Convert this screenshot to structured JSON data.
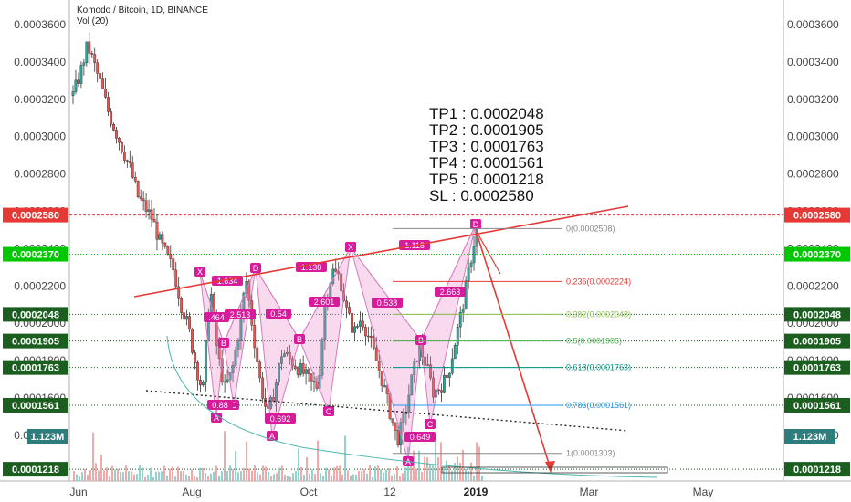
{
  "header": {
    "symbol": "Komodo / Bitcoin, 1D, BINANCE",
    "volume": "Vol (20)"
  },
  "targets": [
    "TP1 : 0.0002048",
    "TP2 : 0.0001905",
    "TP3 : 0.0001763",
    "TP4 : 0.0001561",
    "TP5 : 0.0001218",
    "SL : 0.0002580"
  ],
  "chart_data": {
    "type": "candlestick",
    "title": "Komodo / Bitcoin, 1D, BINANCE",
    "xlabel": "",
    "ylabel": "",
    "x_ticks": [
      "Jun",
      "Aug",
      "Oct",
      "12",
      "2019",
      "Mar",
      "May"
    ],
    "y_ticks": [
      "0.0003600",
      "0.0003400",
      "0.0003200",
      "0.0003000",
      "0.0002800",
      "0.0002600",
      "0.0002400",
      "0.0002200",
      "0.0002000",
      "0.0001800",
      "0.0001600",
      "0.0001400"
    ],
    "ylim": [
      0.00012,
      0.000365
    ],
    "grid": false,
    "price_tags": [
      {
        "label": "0.0002580",
        "value": 0.000258,
        "color": "#e53935"
      },
      {
        "label": "0.0002370",
        "value": 0.000237,
        "color": "#00c800"
      },
      {
        "label": "0.0002048",
        "value": 0.0002048,
        "color": "#1b5e20"
      },
      {
        "label": "0.0001905",
        "value": 0.0001905,
        "color": "#1b5e20"
      },
      {
        "label": "0.0001763",
        "value": 0.0001763,
        "color": "#1b5e20"
      },
      {
        "label": "0.0001561",
        "value": 0.0001561,
        "color": "#1b5e20"
      },
      {
        "label": "0.0001218",
        "value": 0.0001218,
        "color": "#1b5e20"
      }
    ],
    "volume_tag": {
      "label": "1.123M",
      "color": "#2e7d7d"
    },
    "fib_levels": [
      {
        "label": "0(0.0002508)",
        "value": 0.0002508,
        "color": "#888888"
      },
      {
        "label": "0.236(0.0002224)",
        "value": 0.0002224,
        "color": "#e53935"
      },
      {
        "label": "0.382(0.0002048)",
        "value": 0.0002048,
        "color": "#8bc34a"
      },
      {
        "label": "0.5(0.0001905)",
        "value": 0.0001905,
        "color": "#4caf50"
      },
      {
        "label": "0.618(0.0001763)",
        "value": 0.0001763,
        "color": "#009688"
      },
      {
        "label": "0.786(0.0001561)",
        "value": 0.0001561,
        "color": "#2196f3"
      },
      {
        "label": "1(0.0001303)",
        "value": 0.0001303,
        "color": "#888888"
      }
    ],
    "pattern_labels": [
      "X",
      "A",
      "B",
      "C",
      "D",
      "X",
      "A",
      "B",
      "C",
      "D",
      "X",
      "A",
      "B",
      "C",
      "D"
    ],
    "ratio_labels": [
      "1.634",
      ".464",
      "2.513",
      "0.54",
      "1.138",
      "2.601",
      "0.538",
      "0.692",
      "1.118",
      "2.663",
      "0.649",
      "0.88"
    ],
    "series": [
      {
        "name": "",
        "points": [
          [
            "May 28",
            0.000322
          ],
          [
            "Jun 1",
            0.000334
          ],
          [
            "Jun 5",
            0.000349
          ],
          [
            "Jun 8",
            0.000338
          ],
          [
            "Jun 12",
            0.000326
          ],
          [
            "Jun 16",
            0.000312
          ],
          [
            "Jun 20",
            0.000302
          ],
          [
            "Jun 24",
            0.000292
          ],
          [
            "Jun 28",
            0.000282
          ],
          [
            "Jul 2",
            0.000268
          ],
          [
            "Jul 6",
            0.000262
          ],
          [
            "Jul 10",
            0.000256
          ],
          [
            "Jul 14",
            0.000244
          ],
          [
            "Jul 18",
            0.000236
          ],
          [
            "Jul 22",
            0.000228
          ],
          [
            "Jul 26",
            0.00021
          ],
          [
            "Jul 30",
            0.000198
          ],
          [
            "Aug 3",
            0.000178
          ],
          [
            "Aug 6",
            0.000163
          ],
          [
            "Aug 9",
            0.000221
          ],
          [
            "Aug 13",
            0.000185
          ],
          [
            "Aug 17",
            0.000165
          ],
          [
            "Aug 21",
            0.000173
          ],
          [
            "Aug 25",
            0.000195
          ],
          [
            "Aug 29",
            0.000224
          ],
          [
            "Sep 2",
            0.000195
          ],
          [
            "Sep 6",
            0.000168
          ],
          [
            "Sep 10",
            0.00015
          ],
          [
            "Sep 14",
            0.000165
          ],
          [
            "Sep 18",
            0.000185
          ],
          [
            "Sep 22",
            0.000181
          ],
          [
            "Sep 26",
            0.000177
          ],
          [
            "Sep 30",
            0.000173
          ],
          [
            "Oct 4",
            0.000168
          ],
          [
            "Oct 8",
            0.000166
          ],
          [
            "Oct 12",
            0.000212
          ],
          [
            "Oct 16",
            0.000228
          ],
          [
            "Oct 20",
            0.000225
          ],
          [
            "Oct 24",
            0.000206
          ],
          [
            "Oct 28",
            0.000195
          ],
          [
            "Nov 1",
            0.000203
          ],
          [
            "Nov 5",
            0.000193
          ],
          [
            "Nov 9",
            0.000181
          ],
          [
            "Nov 13",
            0.000168
          ],
          [
            "Nov 17",
            0.000152
          ],
          [
            "Nov 20",
            0.000137
          ],
          [
            "Nov 23",
            0.00015
          ],
          [
            "Nov 27",
            0.00017
          ],
          [
            "Dec 1",
            0.000188
          ],
          [
            "Dec 4",
            0.000178
          ],
          [
            "Dec 8",
            0.000163
          ],
          [
            "Dec 12",
            0.000166
          ],
          [
            "Dec 16",
            0.000172
          ],
          [
            "Dec 20",
            0.00019
          ],
          [
            "Dec 24",
            0.000208
          ],
          [
            "Dec 28",
            0.00023
          ],
          [
            "Dec 31",
            0.000251
          ]
        ]
      }
    ]
  }
}
